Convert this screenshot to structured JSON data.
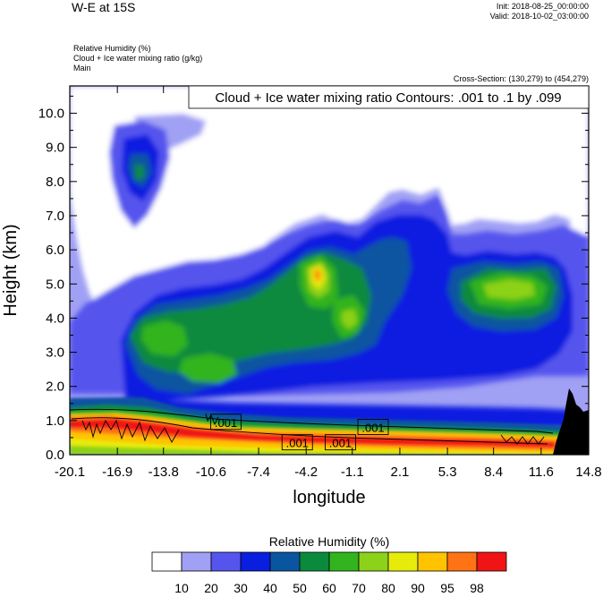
{
  "header": {
    "title": "W-E at 15S",
    "init": "Init: 2018-08-25_00:00:00",
    "valid": "Valid: 2018-10-02_03:00:00",
    "field1": "Relative Humidity   (%)",
    "field2": "Cloud + Ice water mixing ratio   (g/kg)",
    "field3": "Main",
    "cross_section": "Cross-Section: (130,279) to (454,279)"
  },
  "chart_data": {
    "type": "heatmap",
    "title": "Cloud + Ice water mixing ratio Contours: .001 to .1 by .099",
    "xlabel": "longitude",
    "ylabel": "Height (km)",
    "xlim": [
      -20.1,
      14.8
    ],
    "ylim": [
      0.0,
      10.8
    ],
    "x_ticks": [
      "-20.1",
      "-16.9",
      "-13.8",
      "-10.6",
      "-7.4",
      "-4.2",
      "-1.1",
      "2.1",
      "5.3",
      "8.4",
      "11.6",
      "14.8"
    ],
    "x_tick_values": [
      -20.1,
      -16.9,
      -13.8,
      -10.6,
      -7.4,
      -4.2,
      -1.1,
      2.1,
      5.3,
      8.4,
      11.6,
      14.8
    ],
    "y_ticks": [
      "0.0",
      "1.0",
      "2.0",
      "3.0",
      "4.0",
      "5.0",
      "6.0",
      "7.0",
      "8.0",
      "9.0",
      "10.0"
    ],
    "y_tick_values": [
      0,
      1,
      2,
      3,
      4,
      5,
      6,
      7,
      8,
      9,
      10
    ],
    "colorbar": {
      "title": "Relative Humidity  (%)",
      "levels": [
        "10",
        "20",
        "30",
        "40",
        "50",
        "60",
        "70",
        "80",
        "90",
        "95",
        "98"
      ],
      "colors": [
        "#ffffff",
        "#a0a0f5",
        "#5555ee",
        "#0a1ee0",
        "#0a55a0",
        "#0a8a3c",
        "#32b41e",
        "#8cd219",
        "#e6eb0a",
        "#ffc300",
        "#ff7314",
        "#f01414"
      ]
    },
    "contour_labels": [
      {
        "text": ".001",
        "x": -9.6,
        "y": 0.95
      },
      {
        "text": ".001",
        "x": -4.8,
        "y": 0.35
      },
      {
        "text": ".001",
        "x": -1.9,
        "y": 0.35
      },
      {
        "text": ".001",
        "x": 0.3,
        "y": 0.8
      }
    ],
    "grid": false
  }
}
